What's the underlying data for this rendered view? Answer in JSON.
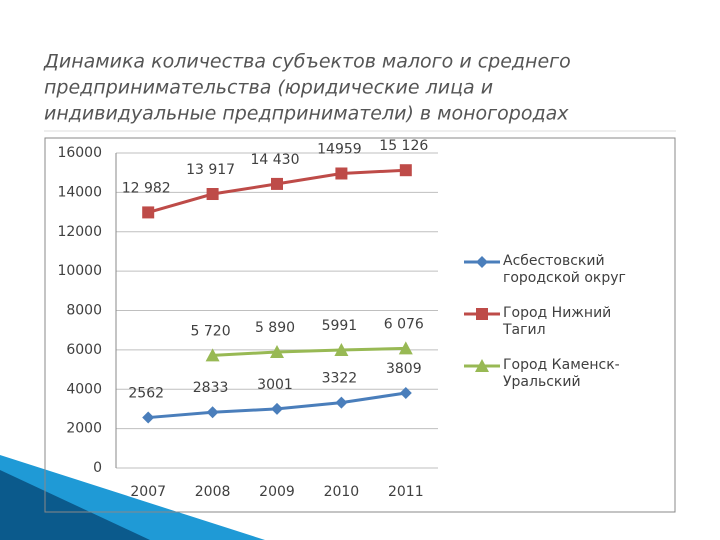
{
  "chart_data": {
    "type": "line",
    "title": [
      "Динамика количества субъектов малого и среднего",
      "предпринимательства (юридические лица и",
      "индивидуальные предприниматели) в моногородах"
    ],
    "categories": [
      "2007",
      "2008",
      "2009",
      "2010",
      "2011"
    ],
    "series": [
      {
        "name": "Асбестовский городской округ",
        "color": "#4a7ebb",
        "marker": "diamond",
        "values": [
          2562,
          2833,
          3001,
          3322,
          3809
        ],
        "value_labels": [
          "2562",
          "2833",
          "3001",
          "3322",
          "3809"
        ]
      },
      {
        "name": "Город Нижний Тагил",
        "color": "#be4b48",
        "marker": "square",
        "values": [
          12982,
          13917,
          14430,
          14959,
          15126
        ],
        "value_labels": [
          "12 982",
          "13 917",
          "14 430",
          "14959",
          "15 126"
        ]
      },
      {
        "name": "Город Каменск-Уральский",
        "color": "#98b954",
        "marker": "triangle",
        "values": [
          null,
          5720,
          5890,
          5991,
          6076
        ],
        "value_labels": [
          null,
          "5 720",
          "5 890",
          "5991",
          "6 076"
        ]
      }
    ],
    "ylim": [
      0,
      16000
    ],
    "yticks": [
      0,
      2000,
      4000,
      6000,
      8000,
      10000,
      12000,
      14000,
      16000
    ],
    "grid": true,
    "legend": "right"
  }
}
